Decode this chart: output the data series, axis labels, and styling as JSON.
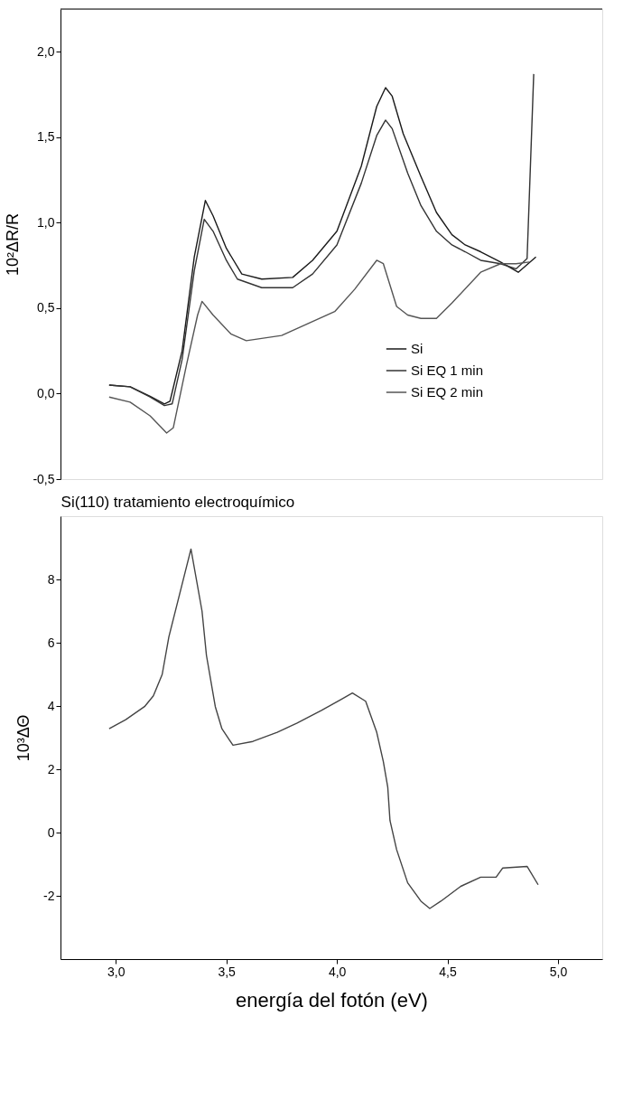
{
  "chart_data": [
    {
      "type": "line",
      "ylabel": "10²ΔR/R",
      "xlim": [
        2.75,
        5.2
      ],
      "ylim": [
        -0.5,
        2.25
      ],
      "yticks": [
        {
          "value": -0.5,
          "label": "-0,5"
        },
        {
          "value": 0,
          "label": "0,0"
        },
        {
          "value": 0.5,
          "label": "0,5"
        },
        {
          "value": 1,
          "label": "1,0"
        },
        {
          "value": 1.5,
          "label": "1,5"
        },
        {
          "value": 2,
          "label": "2,0"
        }
      ],
      "tick_labels": "y",
      "grid": false,
      "legend": "bottom right",
      "marker": "none",
      "line_style": "solid",
      "series": [
        {
          "name": "Si",
          "color": "#1a1a1a",
          "x": [
            2.97,
            3.065,
            3.155,
            3.22,
            3.245,
            3.3,
            3.355,
            3.405,
            3.44,
            3.5,
            3.57,
            3.66,
            3.8,
            3.89,
            4.0,
            4.11,
            4.18,
            4.22,
            4.25,
            4.3,
            4.38,
            4.45,
            4.52,
            4.58,
            4.65,
            4.74,
            4.82,
            4.9
          ],
          "values": [
            0.05,
            0.04,
            -0.015,
            -0.06,
            -0.045,
            0.25,
            0.8,
            1.13,
            1.04,
            0.85,
            0.7,
            0.67,
            0.68,
            0.78,
            0.95,
            1.33,
            1.68,
            1.79,
            1.74,
            1.52,
            1.27,
            1.06,
            0.93,
            0.87,
            0.83,
            0.77,
            0.71,
            0.8
          ]
        },
        {
          "name": "Si EQ 1 min",
          "color": "#333333",
          "x": [
            2.97,
            3.065,
            3.155,
            3.22,
            3.255,
            3.3,
            3.355,
            3.4,
            3.44,
            3.5,
            3.55,
            3.66,
            3.8,
            3.89,
            4.0,
            4.11,
            4.18,
            4.22,
            4.25,
            4.32,
            4.38,
            4.45,
            4.52,
            4.58,
            4.65,
            4.74,
            4.81,
            4.86,
            4.89
          ],
          "values": [
            0.05,
            0.04,
            -0.02,
            -0.07,
            -0.06,
            0.2,
            0.72,
            1.02,
            0.95,
            0.78,
            0.67,
            0.62,
            0.62,
            0.7,
            0.87,
            1.23,
            1.51,
            1.6,
            1.55,
            1.29,
            1.1,
            0.95,
            0.87,
            0.83,
            0.78,
            0.76,
            0.73,
            0.79,
            1.87
          ]
        },
        {
          "name": "Si EQ 2 min",
          "color": "#555555",
          "x": [
            2.97,
            3.065,
            3.155,
            3.23,
            3.26,
            3.32,
            3.37,
            3.39,
            3.44,
            3.52,
            3.59,
            3.75,
            3.87,
            3.99,
            4.08,
            4.18,
            4.21,
            4.27,
            4.32,
            4.38,
            4.45,
            4.52,
            4.65,
            4.74,
            4.81,
            4.87
          ],
          "values": [
            -0.02,
            -0.05,
            -0.13,
            -0.23,
            -0.2,
            0.17,
            0.46,
            0.54,
            0.46,
            0.35,
            0.31,
            0.34,
            0.41,
            0.48,
            0.61,
            0.78,
            0.76,
            0.51,
            0.46,
            0.44,
            0.44,
            0.53,
            0.71,
            0.76,
            0.76,
            0.77
          ]
        }
      ]
    },
    {
      "type": "line",
      "title": "Si(110) tratamiento electroquímico",
      "xlabel": "energía del fotón (eV)",
      "ylabel": "10³ΔΘ",
      "xlim": [
        2.75,
        5.2
      ],
      "xticks": [
        {
          "value": 3,
          "label": "3,0"
        },
        {
          "value": 3.5,
          "label": "3,5"
        },
        {
          "value": 4,
          "label": "4,0"
        },
        {
          "value": 4.5,
          "label": "4,5"
        },
        {
          "value": 5,
          "label": "5,0"
        }
      ],
      "ylim": [
        -4,
        10
      ],
      "yticks": [
        -2,
        0,
        2,
        4,
        6,
        8
      ],
      "grid": false,
      "marker": "none",
      "line_style": "solid",
      "series": [
        {
          "color": "#444444",
          "x": [
            2.97,
            3.045,
            3.13,
            3.17,
            3.21,
            3.24,
            3.34,
            3.39,
            3.41,
            3.45,
            3.48,
            3.53,
            3.62,
            3.73,
            3.82,
            3.93,
            4.02,
            4.07,
            4.13,
            4.18,
            4.21,
            4.23,
            4.24,
            4.27,
            4.32,
            4.38,
            4.42,
            4.47,
            4.56,
            4.65,
            4.72,
            4.75,
            4.86,
            4.91
          ],
          "values": [
            3.28,
            3.57,
            3.98,
            4.32,
            5.0,
            6.18,
            8.96,
            7.0,
            5.6,
            3.98,
            3.28,
            2.76,
            2.88,
            3.17,
            3.46,
            3.86,
            4.21,
            4.41,
            4.15,
            3.17,
            2.24,
            1.43,
            0.38,
            -0.54,
            -1.59,
            -2.17,
            -2.4,
            -2.17,
            -1.7,
            -1.41,
            -1.41,
            -1.12,
            -1.07,
            -1.65
          ]
        }
      ]
    }
  ]
}
